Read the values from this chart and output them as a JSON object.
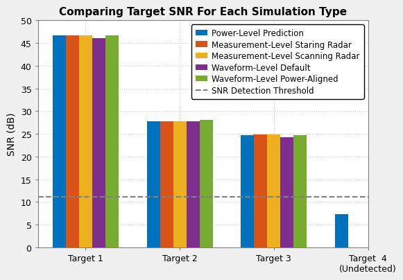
{
  "title": "Comparing Target SNR For Each Simulation Type",
  "ylabel": "SNR (dB)",
  "ylim": [
    0,
    50
  ],
  "yticks": [
    0,
    5,
    10,
    15,
    20,
    25,
    30,
    35,
    40,
    45,
    50
  ],
  "categories": [
    "Target 1",
    "Target 2",
    "Target 3",
    "Target  4\n(Undetected)"
  ],
  "series": [
    {
      "label": "Power-Level Prediction",
      "color": "#0072BD",
      "values": [
        46.7,
        27.8,
        24.7,
        7.3
      ]
    },
    {
      "label": "Measurement-Level Staring Radar",
      "color": "#D95319",
      "values": [
        46.7,
        27.8,
        24.9,
        null
      ]
    },
    {
      "label": "Measurement-Level Scanning Radar",
      "color": "#EDB120",
      "values": [
        46.7,
        27.8,
        24.8,
        null
      ]
    },
    {
      "label": "Waveform-Level Default",
      "color": "#7E2F8E",
      "values": [
        46.1,
        27.7,
        24.3,
        null
      ]
    },
    {
      "label": "Waveform-Level Power-Aligned",
      "color": "#77AC30",
      "values": [
        46.7,
        28.1,
        24.7,
        null
      ]
    }
  ],
  "threshold": 11.2,
  "threshold_label": "SNR Detection Threshold",
  "threshold_color": "#808080",
  "fig_facecolor": "#f0f0f0",
  "ax_facecolor": "#ffffff",
  "grid_color": "#d0d0d0",
  "bar_width": 0.14,
  "title_fontsize": 11,
  "axis_label_fontsize": 10,
  "tick_fontsize": 9,
  "legend_fontsize": 8.5
}
